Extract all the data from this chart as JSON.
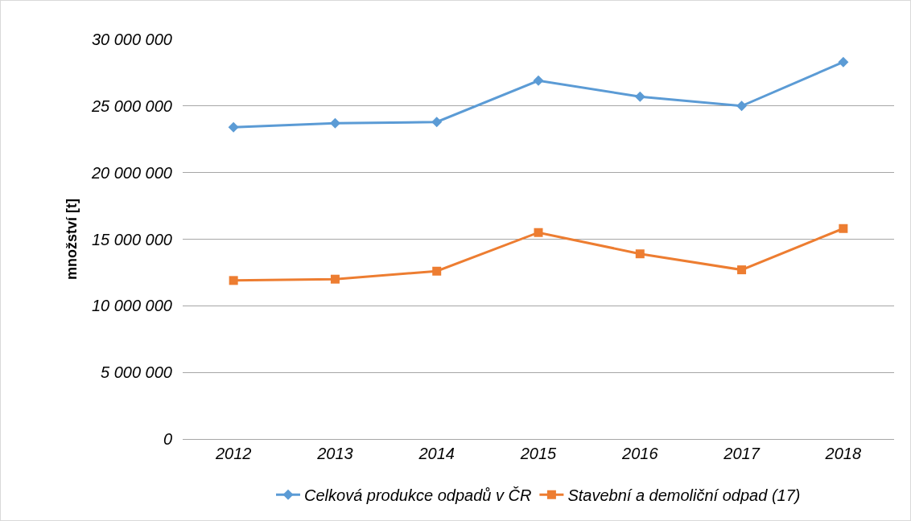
{
  "chart_data": {
    "type": "line",
    "ylabel": "množství [t]",
    "categories": [
      "2012",
      "2013",
      "2014",
      "2015",
      "2016",
      "2017",
      "2018"
    ],
    "series": [
      {
        "name": "Celková produkce odpadů v ČR",
        "color": "#5b9bd5",
        "marker": "diamond",
        "values": [
          23400000,
          23700000,
          23800000,
          26900000,
          25700000,
          25000000,
          28300000
        ]
      },
      {
        "name": "Stavební a demoliční odpad (17)",
        "color": "#ed7d31",
        "marker": "square",
        "values": [
          11900000,
          12000000,
          12600000,
          15500000,
          13900000,
          12700000,
          15800000
        ]
      }
    ],
    "ylim": [
      0,
      30000000
    ],
    "yticks": [
      {
        "value": 0,
        "label": "0"
      },
      {
        "value": 5000000,
        "label": "5 000 000"
      },
      {
        "value": 10000000,
        "label": "10 000 000"
      },
      {
        "value": 15000000,
        "label": "15 000 000"
      },
      {
        "value": 20000000,
        "label": "20 000 000"
      },
      {
        "value": 25000000,
        "label": "25 000 000"
      },
      {
        "value": 30000000,
        "label": "30 000 000"
      }
    ],
    "grid": "y",
    "legend": "bottom",
    "line_style": "solid"
  }
}
